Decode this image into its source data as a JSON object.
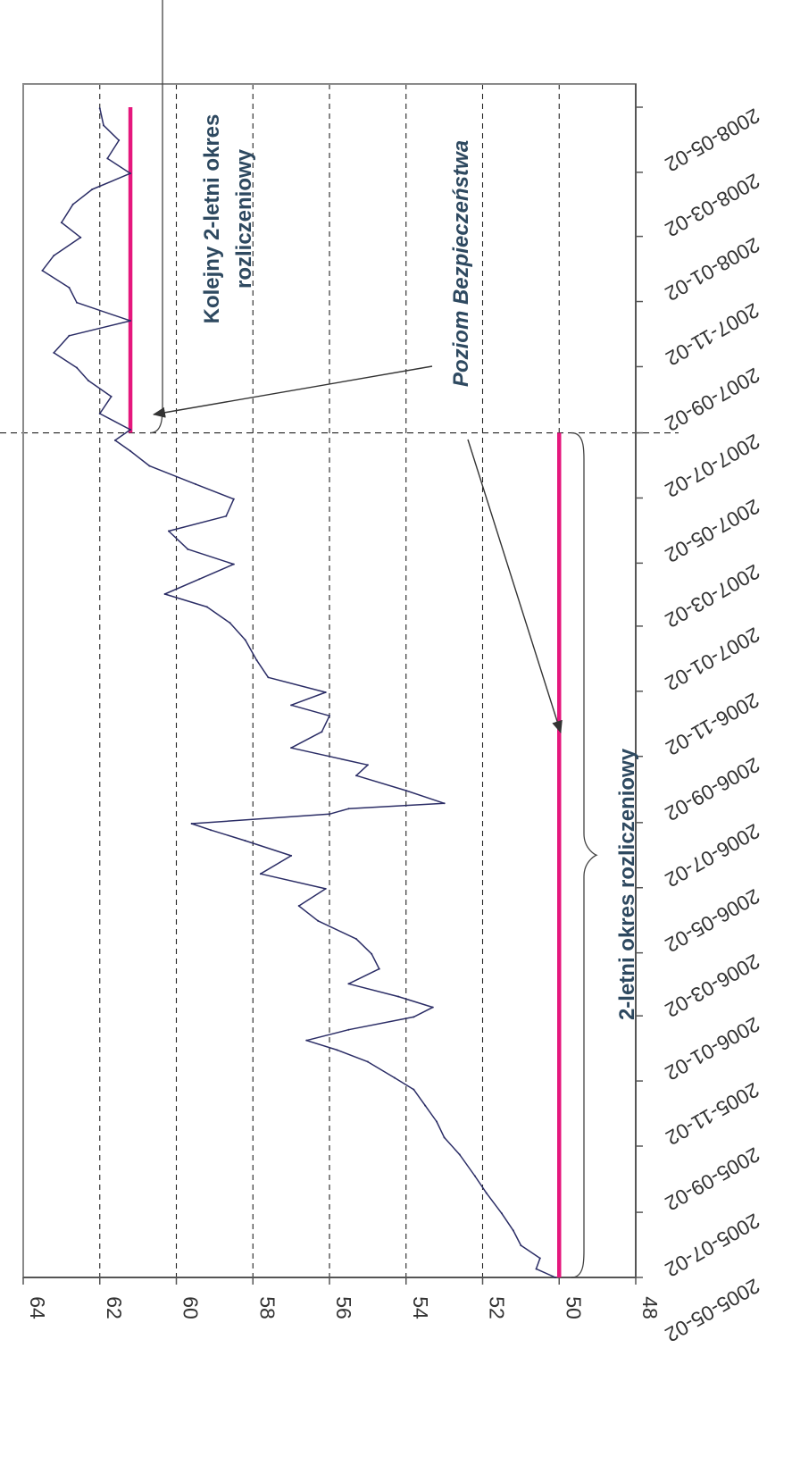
{
  "chart_data": {
    "type": "line",
    "orientation": "rotated 90 degrees clockwise (value axis along bottom, date axis along right side)",
    "title": "",
    "xlabel": "",
    "ylabel": "",
    "ylim": [
      48,
      64
    ],
    "y_ticks": [
      "64",
      "62",
      "60",
      "58",
      "56",
      "54",
      "52",
      "50",
      "48"
    ],
    "xlim": [
      "2005-05-02",
      "2008-05-02"
    ],
    "x_ticks": [
      "2005-05-02",
      "2005-07-02",
      "2005-09-02",
      "2005-11-02",
      "2006-01-02",
      "2006-03-02",
      "2006-05-02",
      "2006-07-02",
      "2006-09-02",
      "2006-11-02",
      "2007-01-02",
      "2007-03-02",
      "2007-05-02",
      "2007-07-02",
      "2007-09-02",
      "2007-11-02",
      "2008-01-02",
      "2008-03-02",
      "2008-05-02"
    ],
    "grid": {
      "value_gridlines": "dashed",
      "date_gridlines": false
    },
    "colors": {
      "series": "#2b2d66",
      "safety_level": "#e5177d",
      "frame": "#8a8a8a",
      "annotation": "#2e4960"
    },
    "series": [
      {
        "values": [
          {
            "x": "2005-05-02",
            "y": 50.1
          },
          {
            "x": "2005-05-10",
            "y": 50.6
          },
          {
            "x": "2005-05-20",
            "y": 50.5
          },
          {
            "x": "2005-06-01",
            "y": 51.0
          },
          {
            "x": "2005-06-15",
            "y": 51.2
          },
          {
            "x": "2005-07-01",
            "y": 51.5
          },
          {
            "x": "2005-07-20",
            "y": 51.9
          },
          {
            "x": "2005-08-05",
            "y": 52.2
          },
          {
            "x": "2005-08-25",
            "y": 52.6
          },
          {
            "x": "2005-09-10",
            "y": 53.0
          },
          {
            "x": "2005-09-25",
            "y": 53.2
          },
          {
            "x": "2005-10-10",
            "y": 53.5
          },
          {
            "x": "2005-10-25",
            "y": 53.8
          },
          {
            "x": "2005-11-05",
            "y": 54.3
          },
          {
            "x": "2005-11-20",
            "y": 55.0
          },
          {
            "x": "2005-12-01",
            "y": 55.8
          },
          {
            "x": "2005-12-10",
            "y": 56.6
          },
          {
            "x": "2005-12-20",
            "y": 55.5
          },
          {
            "x": "2006-01-01",
            "y": 53.8
          },
          {
            "x": "2006-01-10",
            "y": 53.3
          },
          {
            "x": "2006-01-20",
            "y": 54.2
          },
          {
            "x": "2006-02-01",
            "y": 55.5
          },
          {
            "x": "2006-02-15",
            "y": 54.7
          },
          {
            "x": "2006-03-01",
            "y": 54.9
          },
          {
            "x": "2006-03-15",
            "y": 55.3
          },
          {
            "x": "2006-04-01",
            "y": 56.3
          },
          {
            "x": "2006-04-15",
            "y": 56.8
          },
          {
            "x": "2006-05-01",
            "y": 56.1
          },
          {
            "x": "2006-05-15",
            "y": 57.8
          },
          {
            "x": "2006-06-01",
            "y": 57.0
          },
          {
            "x": "2006-06-15",
            "y": 58.2
          },
          {
            "x": "2006-06-25",
            "y": 59.1
          },
          {
            "x": "2006-07-01",
            "y": 59.6
          },
          {
            "x": "2006-07-10",
            "y": 56.0
          },
          {
            "x": "2006-07-15",
            "y": 55.5
          },
          {
            "x": "2006-07-20",
            "y": 53.0
          },
          {
            "x": "2006-08-01",
            "y": 54.0
          },
          {
            "x": "2006-08-15",
            "y": 55.3
          },
          {
            "x": "2006-08-25",
            "y": 55.0
          },
          {
            "x": "2006-09-10",
            "y": 57.0
          },
          {
            "x": "2006-09-25",
            "y": 56.2
          },
          {
            "x": "2006-10-10",
            "y": 56.0
          },
          {
            "x": "2006-10-20",
            "y": 57.0
          },
          {
            "x": "2006-11-01",
            "y": 56.1
          },
          {
            "x": "2006-11-15",
            "y": 57.6
          },
          {
            "x": "2006-12-01",
            "y": 57.9
          },
          {
            "x": "2006-12-20",
            "y": 58.2
          },
          {
            "x": "2007-01-05",
            "y": 58.6
          },
          {
            "x": "2007-01-20",
            "y": 59.2
          },
          {
            "x": "2007-02-01",
            "y": 60.3
          },
          {
            "x": "2007-02-15",
            "y": 59.4
          },
          {
            "x": "2007-03-01",
            "y": 58.5
          },
          {
            "x": "2007-03-15",
            "y": 59.7
          },
          {
            "x": "2007-04-01",
            "y": 60.2
          },
          {
            "x": "2007-04-15",
            "y": 58.7
          },
          {
            "x": "2007-05-01",
            "y": 58.5
          },
          {
            "x": "2007-05-15",
            "y": 59.5
          },
          {
            "x": "2007-06-01",
            "y": 60.7
          },
          {
            "x": "2007-06-15",
            "y": 61.2
          },
          {
            "x": "2007-06-25",
            "y": 61.6
          },
          {
            "x": "2007-07-05",
            "y": 61.2
          },
          {
            "x": "2007-07-20",
            "y": 62.0
          },
          {
            "x": "2007-08-05",
            "y": 61.7
          },
          {
            "x": "2007-08-20",
            "y": 62.3
          },
          {
            "x": "2007-09-01",
            "y": 62.6
          },
          {
            "x": "2007-09-15",
            "y": 63.2
          },
          {
            "x": "2007-10-01",
            "y": 62.8
          },
          {
            "x": "2007-10-15",
            "y": 61.2
          },
          {
            "x": "2007-11-01",
            "y": 62.6
          },
          {
            "x": "2007-11-15",
            "y": 62.8
          },
          {
            "x": "2007-12-01",
            "y": 63.5
          },
          {
            "x": "2007-12-15",
            "y": 63.2
          },
          {
            "x": "2008-01-01",
            "y": 62.5
          },
          {
            "x": "2008-01-15",
            "y": 63.0
          },
          {
            "x": "2008-02-01",
            "y": 62.7
          },
          {
            "x": "2008-02-15",
            "y": 62.2
          },
          {
            "x": "2008-03-01",
            "y": 61.2
          },
          {
            "x": "2008-03-15",
            "y": 61.8
          },
          {
            "x": "2008-04-01",
            "y": 61.5
          },
          {
            "x": "2008-04-15",
            "y": 61.9
          },
          {
            "x": "2008-05-01",
            "y": 62.0
          }
        ]
      }
    ],
    "safety_levels": [
      {
        "start": "2005-05-02",
        "end": "2007-07-02",
        "y": 50.0
      },
      {
        "start": "2007-07-02",
        "end": "2008-05-02",
        "y": 61.2
      }
    ],
    "period_divider_date": "2007-07-02",
    "annotations": {
      "period_1": "2-letni okres rozliczeniowy",
      "period_2_line1": "Kolejny 2-letni okres",
      "period_2_line2": "rozliczeniowy",
      "safety_level_label": "Poziom Bezpieczeństwa"
    }
  }
}
